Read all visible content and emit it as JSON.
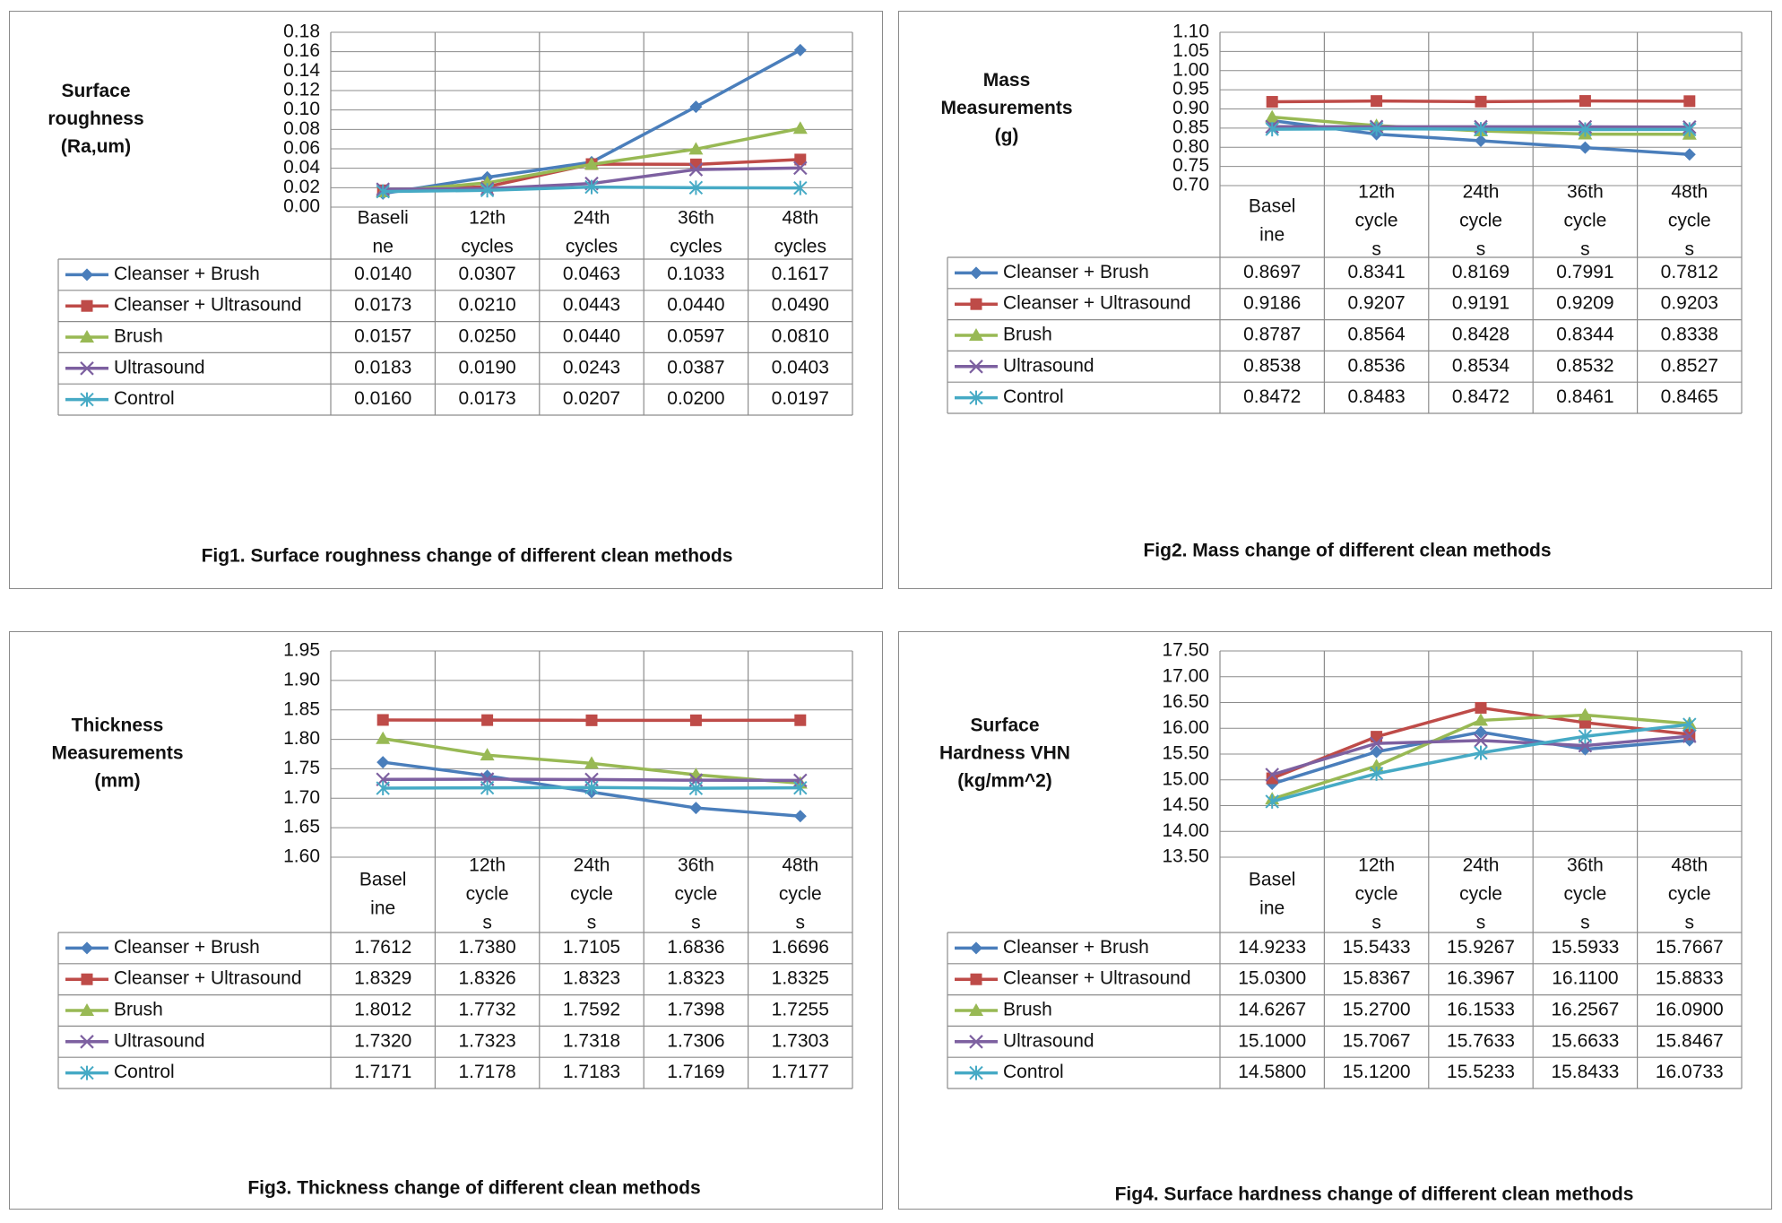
{
  "chart_data": [
    {
      "type": "line",
      "title": "Fig1. Surface roughness change of different clean methods",
      "ylabel": [
        "Surface",
        "roughness",
        "(Ra,um)"
      ],
      "ylim": [
        0,
        0.18
      ],
      "ystep": 0.02,
      "ydecimals": 2,
      "vdecimals": 4,
      "categories": [
        [
          "Baseli",
          "ne"
        ],
        [
          "12th",
          "cycles"
        ],
        [
          "24th",
          "cycles"
        ],
        [
          "36th",
          "cycles"
        ],
        [
          "48th",
          "cycles"
        ]
      ],
      "series": [
        {
          "name": "Cleanser + Brush",
          "values": [
            0.014,
            0.0307,
            0.0463,
            0.1033,
            0.1617
          ]
        },
        {
          "name": "Cleanser + Ultrasound",
          "values": [
            0.0173,
            0.021,
            0.0443,
            0.044,
            0.049
          ]
        },
        {
          "name": "Brush",
          "values": [
            0.0157,
            0.025,
            0.044,
            0.0597,
            0.081
          ]
        },
        {
          "name": "Ultrasound",
          "values": [
            0.0183,
            0.019,
            0.0243,
            0.0387,
            0.0403
          ]
        },
        {
          "name": "Control",
          "values": [
            0.016,
            0.0173,
            0.0207,
            0.02,
            0.0197
          ]
        }
      ]
    },
    {
      "type": "line",
      "title": "Fig2. Mass change of different clean methods",
      "ylabel": [
        "Mass",
        "Measurements",
        "(g)"
      ],
      "ylim": [
        0.7,
        1.1
      ],
      "ystep": 0.05,
      "ydecimals": 2,
      "vdecimals": 4,
      "categories": [
        [
          "Basel",
          "ine"
        ],
        [
          "12th",
          "cycle",
          "s"
        ],
        [
          "24th",
          "cycle",
          "s"
        ],
        [
          "36th",
          "cycle",
          "s"
        ],
        [
          "48th",
          "cycle",
          "s"
        ]
      ],
      "series": [
        {
          "name": "Cleanser + Brush",
          "values": [
            0.8697,
            0.8341,
            0.8169,
            0.7991,
            0.7812
          ]
        },
        {
          "name": "Cleanser + Ultrasound",
          "values": [
            0.9186,
            0.9207,
            0.9191,
            0.9209,
            0.9203
          ]
        },
        {
          "name": "Brush",
          "values": [
            0.8787,
            0.8564,
            0.8428,
            0.8344,
            0.8338
          ]
        },
        {
          "name": "Ultrasound",
          "values": [
            0.8538,
            0.8536,
            0.8534,
            0.8532,
            0.8527
          ]
        },
        {
          "name": "Control",
          "values": [
            0.8472,
            0.8483,
            0.8472,
            0.8461,
            0.8465
          ]
        }
      ]
    },
    {
      "type": "line",
      "title": "Fig3. Thickness change of different clean methods",
      "ylabel": [
        "Thickness",
        "Measurements",
        "(mm)"
      ],
      "ylim": [
        1.6,
        1.95
      ],
      "ystep": 0.05,
      "ydecimals": 2,
      "vdecimals": 4,
      "categories": [
        [
          "Basel",
          "ine"
        ],
        [
          "12th",
          "cycle",
          "s"
        ],
        [
          "24th",
          "cycle",
          "s"
        ],
        [
          "36th",
          "cycle",
          "s"
        ],
        [
          "48th",
          "cycle",
          "s"
        ]
      ],
      "series": [
        {
          "name": "Cleanser + Brush",
          "values": [
            1.7612,
            1.738,
            1.7105,
            1.6836,
            1.6696
          ]
        },
        {
          "name": "Cleanser + Ultrasound",
          "values": [
            1.8329,
            1.8326,
            1.8323,
            1.8323,
            1.8325
          ]
        },
        {
          "name": "Brush",
          "values": [
            1.8012,
            1.7732,
            1.7592,
            1.7398,
            1.7255
          ]
        },
        {
          "name": "Ultrasound",
          "values": [
            1.732,
            1.7323,
            1.7318,
            1.7306,
            1.7303
          ]
        },
        {
          "name": "Control",
          "values": [
            1.7171,
            1.7178,
            1.7183,
            1.7169,
            1.7177
          ]
        }
      ]
    },
    {
      "type": "line",
      "title": "Fig4. Surface hardness change of different clean methods",
      "ylabel": [
        "Surface",
        "Hardness VHN",
        "(kg/mm^2)"
      ],
      "ylim": [
        13.5,
        17.5
      ],
      "ystep": 0.5,
      "ydecimals": 2,
      "vdecimals": 4,
      "categories": [
        [
          "Basel",
          "ine"
        ],
        [
          "12th",
          "cycle",
          "s"
        ],
        [
          "24th",
          "cycle",
          "s"
        ],
        [
          "36th",
          "cycle",
          "s"
        ],
        [
          "48th",
          "cycle",
          "s"
        ]
      ],
      "series": [
        {
          "name": "Cleanser + Brush",
          "values": [
            14.9233,
            15.5433,
            15.9267,
            15.5933,
            15.7667
          ]
        },
        {
          "name": "Cleanser + Ultrasound",
          "values": [
            15.03,
            15.8367,
            16.3967,
            16.11,
            15.8833
          ]
        },
        {
          "name": "Brush",
          "values": [
            14.6267,
            15.27,
            16.1533,
            16.2567,
            16.09
          ]
        },
        {
          "name": "Ultrasound",
          "values": [
            15.1,
            15.7067,
            15.7633,
            15.6633,
            15.8467
          ]
        },
        {
          "name": "Control",
          "values": [
            14.58,
            15.12,
            15.5233,
            15.8433,
            16.0733
          ]
        }
      ]
    }
  ],
  "series_styles": [
    {
      "color": "#4a7ebb",
      "marker": "diamond"
    },
    {
      "color": "#be4b48",
      "marker": "square"
    },
    {
      "color": "#98b954",
      "marker": "triangle"
    },
    {
      "color": "#7d60a0",
      "marker": "x"
    },
    {
      "color": "#46aac5",
      "marker": "star"
    }
  ],
  "grid": true,
  "legend_placement": "data-table"
}
